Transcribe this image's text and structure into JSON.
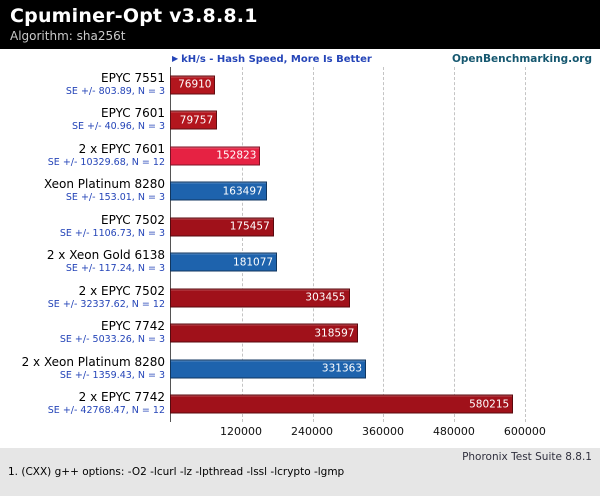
{
  "colors": {
    "header_bg": "#000000",
    "meta_blue": "#2545b8",
    "se_blue": "#2545b8",
    "openbenchmarking": "#15576f",
    "footer_bg": "#e6e6e6"
  },
  "chart_data": {
    "type": "bar",
    "orientation": "horizontal",
    "title": "Cpuminer-Opt v3.8.8.1",
    "subtitle": "Algorithm: sha256t",
    "value_label": "kH/s - Hash Speed, More Is Better",
    "watermark": "OpenBenchmarking.org",
    "arrow_glyph": "▶",
    "axis": {
      "min": 0,
      "max": 710000,
      "tick_values": [
        120000,
        240000,
        360000,
        480000,
        600000
      ],
      "tick_labels": [
        "120000",
        "240000",
        "360000",
        "480000",
        "600000"
      ],
      "grid": true
    },
    "legend_position": "none",
    "bars": [
      {
        "label": "EPYC 7551",
        "se": "SE +/- 803.89, N = 3",
        "value": 76910,
        "color": "#b3161e"
      },
      {
        "label": "EPYC 7601",
        "se": "SE +/- 40.96, N = 3",
        "value": 79757,
        "color": "#b3161e"
      },
      {
        "label": "2 x EPYC 7601",
        "se": "SE +/- 10329.68, N = 12",
        "value": 152823,
        "color": "#e62243"
      },
      {
        "label": "Xeon Platinum 8280",
        "se": "SE +/- 153.01, N = 3",
        "value": 163497,
        "color": "#1e63ad"
      },
      {
        "label": "EPYC 7502",
        "se": "SE +/- 1106.73, N = 3",
        "value": 175457,
        "color": "#a0111a"
      },
      {
        "label": "2 x Xeon Gold 6138",
        "se": "SE +/- 117.24, N = 3",
        "value": 181077,
        "color": "#1e63ad"
      },
      {
        "label": "2 x EPYC 7502",
        "se": "SE +/- 32337.62, N = 12",
        "value": 303455,
        "color": "#a0111a"
      },
      {
        "label": "EPYC 7742",
        "se": "SE +/- 5033.26, N = 3",
        "value": 318597,
        "color": "#a0111a"
      },
      {
        "label": "2 x Xeon Platinum 8280",
        "se": "SE +/- 1359.43, N = 3",
        "value": 331363,
        "color": "#1e63ad"
      },
      {
        "label": "2 x EPYC 7742",
        "se": "SE +/- 42768.47, N = 12",
        "value": 580215,
        "color": "#a0111a"
      }
    ]
  },
  "footer": {
    "suite": "Phoronix Test Suite 8.8.1",
    "note": "1. (CXX) g++ options: -O2 -lcurl -lz -lpthread -lssl -lcrypto -lgmp"
  }
}
